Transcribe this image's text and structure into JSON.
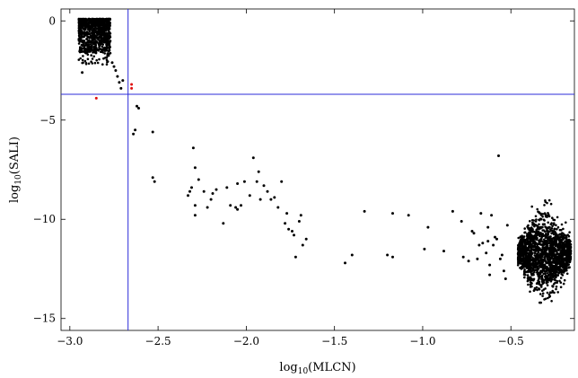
{
  "chart_data": {
    "type": "scatter",
    "xlabel": {
      "base": "log",
      "sub": "10",
      "arg": "(MLCN)"
    },
    "ylabel": {
      "base": "log",
      "sub": "10",
      "arg": "(SALI)"
    },
    "xlim": [
      -3.05,
      -0.14
    ],
    "ylim": [
      -15.6,
      0.6
    ],
    "x_ticks": [
      {
        "value": -3.0,
        "label": "−3.0"
      },
      {
        "value": -2.5,
        "label": "−2.5"
      },
      {
        "value": -2.0,
        "label": "−2.0"
      },
      {
        "value": -1.5,
        "label": "−1.5"
      },
      {
        "value": -1.0,
        "label": "−1.0"
      },
      {
        "value": -0.5,
        "label": "−0.5"
      }
    ],
    "y_ticks": [
      {
        "value": 0,
        "label": "0"
      },
      {
        "value": -5,
        "label": "−5"
      },
      {
        "value": -10,
        "label": "−10"
      },
      {
        "value": -15,
        "label": "−15"
      }
    ],
    "threshold_lines": {
      "x": -2.67,
      "y": -3.7,
      "color": "#2b2bd9"
    },
    "clusters": [
      {
        "name": "chaotic",
        "x_range": [
          -2.95,
          -2.77
        ],
        "y_range": [
          -1.6,
          0.1
        ],
        "y_floor": -2.2,
        "count": 900,
        "color": "#000000"
      },
      {
        "name": "regular",
        "x_range": [
          -0.46,
          -0.16
        ],
        "y_range": [
          -13.6,
          -8.2
        ],
        "y_center": -11.7,
        "count": 1700,
        "color": "#000000"
      }
    ],
    "series": [
      {
        "color": "#000000",
        "x": [
          -2.76,
          -2.74,
          -2.73,
          -2.75,
          -2.72,
          -2.71,
          -2.7,
          -2.93,
          -2.62,
          -2.61,
          -2.64,
          -2.63,
          -2.53,
          -2.53,
          -2.52,
          -2.3,
          -2.29,
          -2.31,
          -2.32,
          -2.33,
          -2.29,
          -2.29,
          -2.27,
          -2.24,
          -2.22,
          -2.2,
          -2.19,
          -2.17,
          -2.13,
          -2.11,
          -2.09,
          -2.06,
          -2.05,
          -2.05,
          -2.03,
          -2.01,
          -1.98,
          -1.96,
          -1.94,
          -1.93,
          -1.92,
          -1.9,
          -1.88,
          -1.86,
          -1.84,
          -1.82,
          -1.8,
          -1.78,
          -1.77,
          -1.76,
          -1.74,
          -1.73,
          -1.72,
          -1.7,
          -1.69,
          -1.68,
          -1.66,
          -1.4,
          -1.44,
          -1.33,
          -1.2,
          -1.17,
          -1.17,
          -1.08,
          -0.99,
          -0.97,
          -0.88,
          -0.83,
          -0.77,
          -0.72,
          -0.67,
          -0.63,
          -0.57,
          -0.55,
          -0.6,
          -0.59,
          -0.62,
          -0.63,
          -0.58,
          -0.64,
          -0.56,
          -0.54,
          -0.61,
          -0.66,
          -0.69,
          -0.71,
          -0.74,
          -0.52,
          -0.53,
          -0.68,
          -0.78,
          -0.62
        ],
        "y": [
          -2.1,
          -2.5,
          -2.8,
          -2.3,
          -3.1,
          -3.4,
          -3.0,
          -2.6,
          -4.3,
          -4.4,
          -5.7,
          -5.5,
          -5.6,
          -7.9,
          -8.1,
          -6.4,
          -7.4,
          -8.4,
          -8.6,
          -8.8,
          -9.8,
          -9.3,
          -8.0,
          -8.6,
          -9.4,
          -9.0,
          -8.7,
          -8.5,
          -10.2,
          -8.4,
          -9.3,
          -9.4,
          -9.5,
          -8.2,
          -9.3,
          -8.1,
          -8.8,
          -6.9,
          -8.1,
          -7.6,
          -9.0,
          -8.3,
          -8.6,
          -9.0,
          -8.9,
          -9.4,
          -8.1,
          -10.2,
          -9.7,
          -10.5,
          -10.6,
          -10.8,
          -11.9,
          -10.1,
          -9.8,
          -11.3,
          -11.0,
          -11.8,
          -12.2,
          -9.6,
          -11.8,
          -11.9,
          -9.7,
          -9.8,
          -11.5,
          -10.4,
          -11.6,
          -9.6,
          -11.9,
          -10.6,
          -9.7,
          -11.1,
          -6.8,
          -11.8,
          -11.3,
          -10.9,
          -12.3,
          -10.4,
          -11.0,
          -11.7,
          -12.0,
          -12.6,
          -9.8,
          -11.2,
          -12.0,
          -10.7,
          -12.1,
          -10.3,
          -13.0,
          -11.3,
          -10.1,
          -12.8
        ]
      },
      {
        "color": "#e01010",
        "x": [
          -2.85,
          -2.65,
          -2.65
        ],
        "y": [
          -3.9,
          -3.2,
          -3.4
        ]
      }
    ]
  }
}
